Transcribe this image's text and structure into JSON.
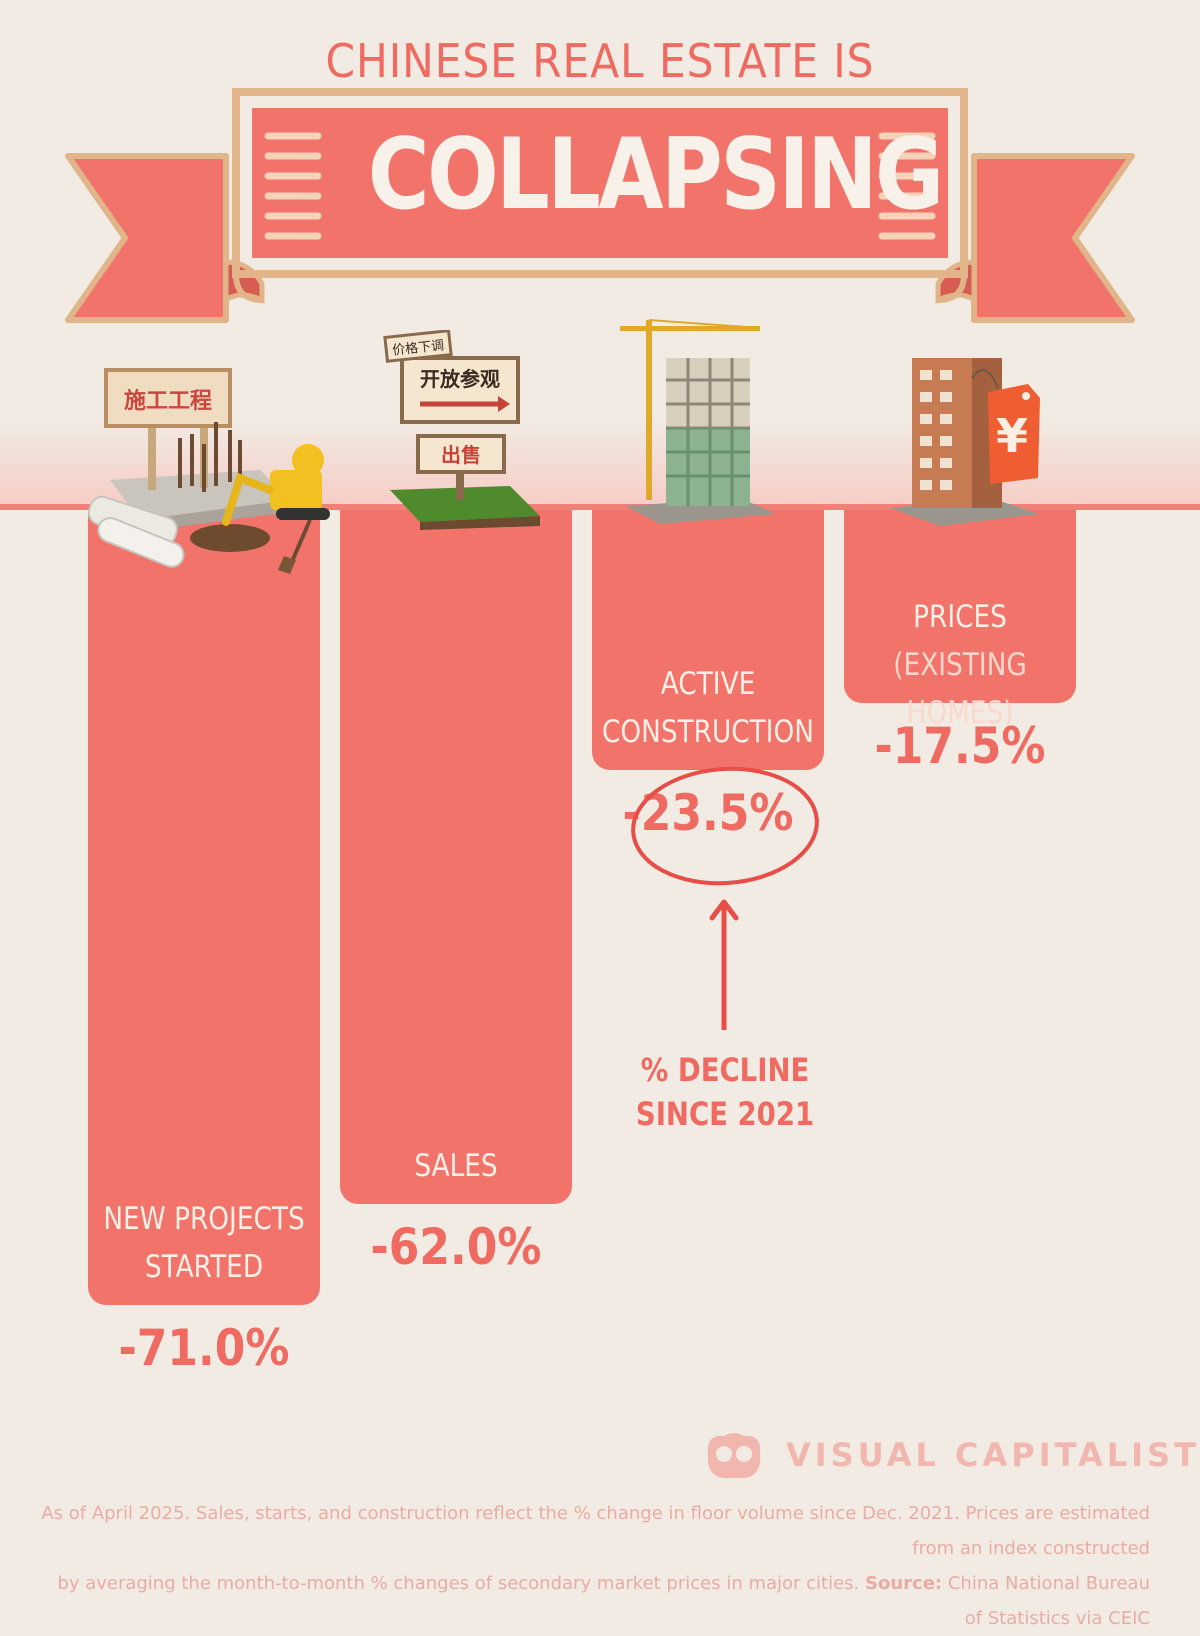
{
  "header": {
    "title_line1": "CHINESE REAL ESTATE IS",
    "title_line2": "COLLAPSING"
  },
  "colors": {
    "background": "#f1ebe4",
    "bar": "#f1736a",
    "accent": "#ef6a60",
    "banner_outline": "#e2b48a",
    "label_text": "#fbefe6"
  },
  "chart_data": {
    "type": "bar",
    "orientation": "downward",
    "categories": [
      "NEW PROJECTS STARTED",
      "SALES",
      "ACTIVE CONSTRUCTION",
      "PRICES (EXISTING HOMES)"
    ],
    "category_lines": [
      [
        "NEW PROJECTS",
        "STARTED"
      ],
      [
        "SALES"
      ],
      [
        "ACTIVE",
        "CONSTRUCTION"
      ],
      [
        "PRICES",
        "(EXISTING HOMES)"
      ]
    ],
    "values": [
      -71.0,
      -62.0,
      -23.5,
      -17.5
    ],
    "value_labels": [
      "-71.0%",
      "-62.0%",
      "-23.5%",
      "-17.5%"
    ],
    "highlighted": "ACTIVE CONSTRUCTION",
    "annotation": "% DECLINE SINCE 2021",
    "annotation_lines": [
      "% DECLINE",
      "SINCE 2021"
    ],
    "legend": "none",
    "grid": false
  },
  "illustrations": [
    {
      "name": "construction-site-icon",
      "sign_text": "施工工程"
    },
    {
      "name": "for-sale-sign-icon",
      "tag_text": "价格下调",
      "sign_text": "开放参观",
      "sale_text": "出售"
    },
    {
      "name": "building-under-construction-icon"
    },
    {
      "name": "apartment-price-tag-icon",
      "tag_symbol": "¥"
    }
  ],
  "brand": {
    "name": "VISUAL CAPITALIST",
    "icon": "visual-capitalist-logo-icon"
  },
  "footnote": {
    "line1": "As of April 2025. Sales, starts, and construction reflect the % change in floor volume since Dec. 2021. Prices are estimated from an index constructed",
    "line2_prefix": "by averaging the month-to-month % changes of secondary market prices in major cities.",
    "source_label": "Source:",
    "source_text": "China National Bureau of Statistics via CEIC"
  }
}
